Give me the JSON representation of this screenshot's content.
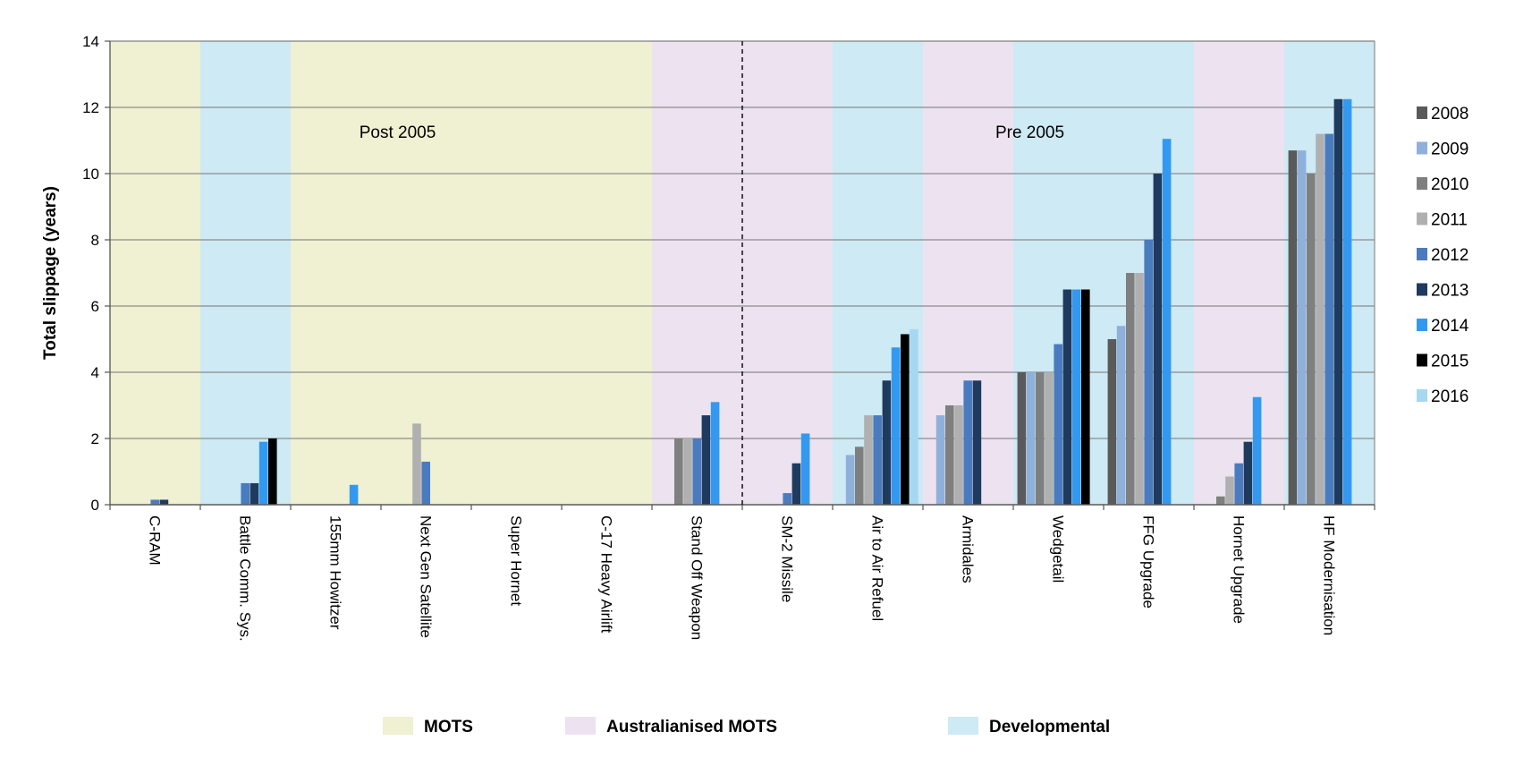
{
  "chart_data": {
    "type": "bar",
    "ylabel": "Total slippage (years)",
    "ylim": [
      0,
      14
    ],
    "yticks": [
      "0",
      "2",
      "4",
      "6",
      "8",
      "10",
      "12",
      "14"
    ],
    "grid": true,
    "categories": [
      "C-RAM",
      "Battle Comm. Sys.",
      "155mm Howitzer",
      "Next Gen Satellite",
      "Super Hornet",
      "C-17 Heavy Airlift",
      "Stand Off Weapon",
      "SM-2 Missile",
      "Air to Air Refuel",
      "Armidales",
      "Wedgetail",
      "FFG Upgrade",
      "Hornet Upgrade",
      "HF Modernisation"
    ],
    "category_groups": [
      "MOTS",
      "Developmental",
      "MOTS",
      "MOTS",
      "MOTS",
      "MOTS",
      "Australianised MOTS",
      "Australianised MOTS",
      "Developmental",
      "Australianised MOTS",
      "Developmental",
      "Developmental",
      "Australianised MOTS",
      "Developmental"
    ],
    "groups": [
      {
        "name": "MOTS",
        "color": "#f0f0d2"
      },
      {
        "name": "Australianised MOTS",
        "color": "#ece2f0"
      },
      {
        "name": "Developmental",
        "color": "#cdeaf5"
      }
    ],
    "annotations": [
      {
        "text": "Post 2005",
        "category": 3
      },
      {
        "text": "Pre 2005",
        "category": 10
      }
    ],
    "divider_after_category": 6,
    "legend_placement": "right",
    "series": [
      {
        "name": "2008",
        "color": "#5a5a5a",
        "values": [
          0,
          0,
          0,
          0,
          0,
          0,
          0,
          0,
          0,
          0,
          4.0,
          5.0,
          0,
          10.7
        ]
      },
      {
        "name": "2009",
        "color": "#8fb0da",
        "values": [
          0,
          0,
          0,
          0,
          0,
          0,
          0,
          0,
          1.5,
          2.7,
          4.0,
          5.4,
          0,
          10.7
        ]
      },
      {
        "name": "2010",
        "color": "#7f7f7f",
        "values": [
          0,
          0,
          0,
          0,
          0,
          0,
          2.0,
          0,
          1.75,
          3.0,
          4.0,
          7.0,
          0.25,
          10.0
        ]
      },
      {
        "name": "2011",
        "color": "#b0b0b0",
        "values": [
          0,
          0,
          0,
          2.45,
          0,
          0,
          2.0,
          0,
          2.7,
          3.0,
          4.0,
          7.0,
          0.85,
          11.2
        ]
      },
      {
        "name": "2012",
        "color": "#4a7bbf",
        "values": [
          0.15,
          0.65,
          0,
          1.3,
          0,
          0,
          2.0,
          0.35,
          2.7,
          3.75,
          4.85,
          8.0,
          1.25,
          11.2
        ]
      },
      {
        "name": "2013",
        "color": "#1f3a5f",
        "values": [
          0.15,
          0.65,
          0,
          0,
          0,
          0,
          2.7,
          1.25,
          3.75,
          3.75,
          6.5,
          10.0,
          1.9,
          12.25
        ]
      },
      {
        "name": "2014",
        "color": "#3399f0",
        "values": [
          0,
          1.9,
          0.6,
          0,
          0,
          0,
          3.1,
          2.15,
          4.75,
          0,
          6.5,
          11.05,
          3.25,
          12.25
        ]
      },
      {
        "name": "2015",
        "color": "#000000",
        "values": [
          0,
          2.0,
          0,
          0,
          0,
          0,
          0,
          0,
          5.15,
          0,
          6.5,
          0,
          0,
          0
        ]
      },
      {
        "name": "2016",
        "color": "#a6d8f2",
        "values": [
          0,
          0,
          0,
          0,
          0,
          0,
          0,
          0,
          5.3,
          0,
          0,
          0,
          0,
          0
        ]
      }
    ]
  }
}
